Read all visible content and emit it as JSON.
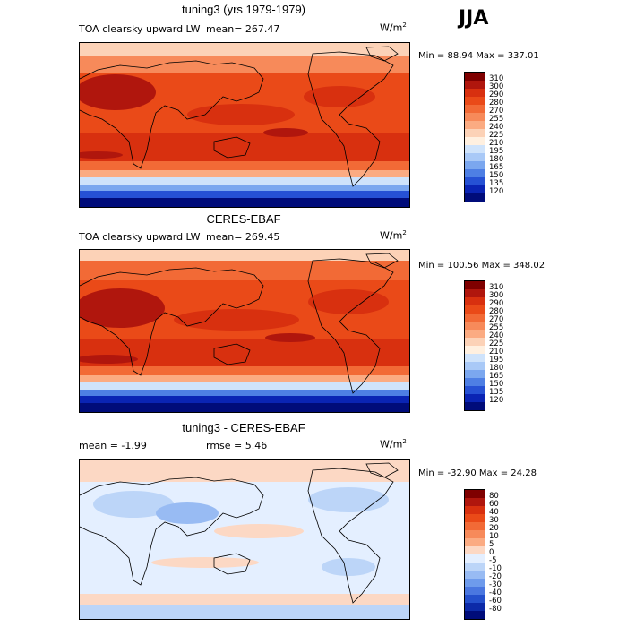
{
  "season": "JJA",
  "panels": [
    {
      "title": "tuning3 (yrs 1979-1979)",
      "left_label": "TOA clearsky upward LW",
      "mean_label": "mean= 267.47",
      "units": "W/m",
      "units_sup": "2",
      "minmax": "Min =  88.94 Max = 337.01",
      "colorbar_labels": [
        "310",
        "300",
        "290",
        "280",
        "270",
        "255",
        "240",
        "225",
        "210",
        "195",
        "180",
        "165",
        "150",
        "135",
        "120"
      ],
      "colorbar_colors": [
        "#7f0000",
        "#b0160d",
        "#d8300f",
        "#ea4a18",
        "#f26a36",
        "#f78a5a",
        "#fbab82",
        "#fcd2b7",
        "#fff0e0",
        "#cfe3fb",
        "#a9c9f7",
        "#7ba7ef",
        "#4e7fe4",
        "#2651d4",
        "#0a24b4",
        "#000c7a"
      ]
    },
    {
      "title": "CERES-EBAF",
      "left_label": "TOA clearsky upward LW",
      "mean_label": "mean= 269.45",
      "units": "W/m",
      "units_sup": "2",
      "minmax": "Min = 100.56 Max = 348.02",
      "colorbar_labels": [
        "310",
        "300",
        "290",
        "280",
        "270",
        "255",
        "240",
        "225",
        "210",
        "195",
        "180",
        "165",
        "150",
        "135",
        "120"
      ],
      "colorbar_colors": [
        "#7f0000",
        "#b0160d",
        "#d8300f",
        "#ea4a18",
        "#f26a36",
        "#f78a5a",
        "#fbab82",
        "#fcd2b7",
        "#fff0e0",
        "#cfe3fb",
        "#a9c9f7",
        "#7ba7ef",
        "#4e7fe4",
        "#2651d4",
        "#0a24b4",
        "#000c7a"
      ]
    },
    {
      "title": "tuning3 - CERES-EBAF",
      "left_label": "mean =   -1.99",
      "mean_label": "rmse =   5.46",
      "units": "W/m",
      "units_sup": "2",
      "minmax": "Min = -32.90 Max =  24.28",
      "colorbar_labels": [
        "80",
        "60",
        "40",
        "30",
        "20",
        "10",
        "5",
        "0",
        "-5",
        "-10",
        "-20",
        "-30",
        "-40",
        "-60",
        "-80"
      ],
      "colorbar_colors": [
        "#7f0000",
        "#b0160d",
        "#d8300f",
        "#ea4a18",
        "#f26a36",
        "#f78a5a",
        "#fbab82",
        "#fcd8c4",
        "#e4efff",
        "#bcd5f8",
        "#98bbf3",
        "#6e9bec",
        "#4a77e0",
        "#2450cc",
        "#0c2aa8",
        "#000c7a"
      ]
    }
  ]
}
